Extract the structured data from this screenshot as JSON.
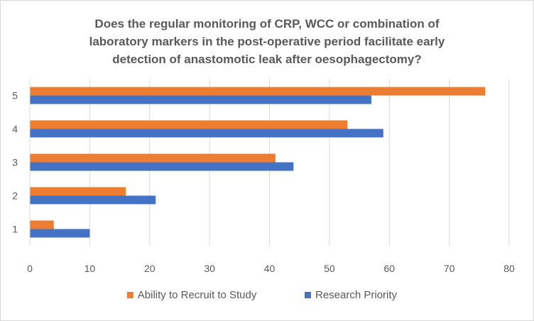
{
  "chart_data": {
    "type": "bar",
    "orientation": "horizontal",
    "title_lines": [
      "Does the regular monitoring of CRP, WCC or combination of",
      "laboratory markers in the post-operative period facilitate early",
      "detection of anastomotic leak after oesophagectomy?"
    ],
    "categories": [
      "1",
      "2",
      "3",
      "4",
      "5"
    ],
    "series": [
      {
        "name": "Ability to Recruit to Study",
        "color": "#ed7d31",
        "values": [
          4,
          16,
          41,
          53,
          76
        ]
      },
      {
        "name": "Research Priority",
        "color": "#4472c4",
        "values": [
          10,
          21,
          44,
          59,
          57
        ]
      }
    ],
    "xlim": [
      0,
      80
    ],
    "x_ticks": [
      0,
      10,
      20,
      30,
      40,
      50,
      60,
      70,
      80
    ],
    "grid": "vertical",
    "grid_color": "#d9d9d9",
    "legend_position": "bottom"
  }
}
